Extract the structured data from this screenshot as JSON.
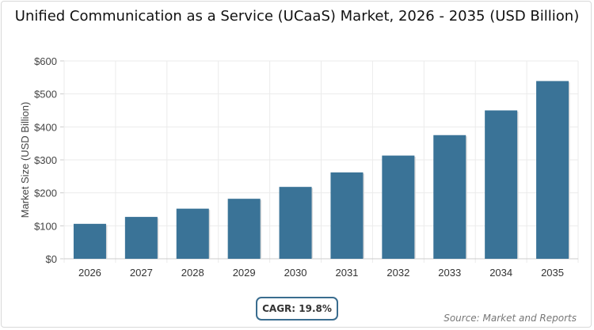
{
  "chart_data": {
    "type": "bar",
    "title": "Unified Communication as a Service (UCaaS) Market, 2026 - 2035 (USD Billion)",
    "xlabel": "",
    "ylabel": "Market Size (USD Billion)",
    "categories": [
      "2026",
      "2027",
      "2028",
      "2029",
      "2030",
      "2031",
      "2032",
      "2033",
      "2034",
      "2035"
    ],
    "values": [
      106,
      127,
      152,
      182,
      218,
      262,
      313,
      375,
      450,
      539
    ],
    "ylim": [
      0,
      600
    ],
    "yticks": [
      0,
      100,
      200,
      300,
      400,
      500,
      600
    ],
    "ytick_labels": [
      "$0",
      "$100",
      "$200",
      "$300",
      "$400",
      "$500",
      "$600"
    ],
    "grid": true,
    "bar_color": "#3a7397"
  },
  "cagr_label": "CAGR: 19.8%",
  "source": "Source: Market and Reports"
}
